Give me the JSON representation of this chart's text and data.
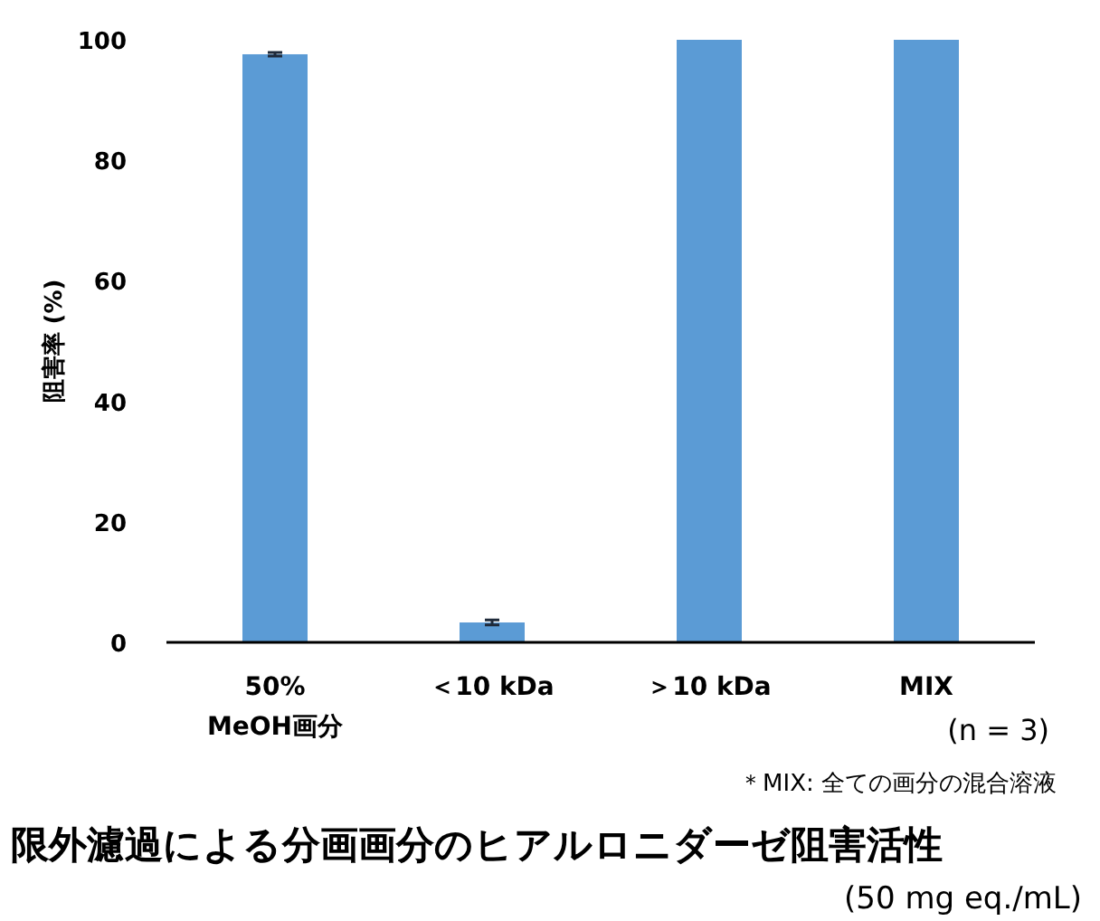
{
  "chart_data": {
    "type": "bar",
    "title": "限外濾過による分画画分のヒアルロニダーゼ阻害活性",
    "subtitle": "(50 mg eq./mL)",
    "ylabel": "阻害率 (%)",
    "categories": [
      "50%\nMeOH画分",
      "＜10 kDa",
      "＞10 kDa",
      "MIX"
    ],
    "values": [
      97.6,
      3.3,
      100,
      100
    ],
    "errors": [
      0.3,
      0.4,
      null,
      null
    ],
    "color": "#5b9bd5",
    "ylim": [
      0,
      100
    ],
    "yticks": [
      0,
      20,
      40,
      60,
      80,
      100
    ],
    "annotations": [
      "(n = 3)",
      "＊MIX: 全ての画分の混合溶液"
    ]
  }
}
